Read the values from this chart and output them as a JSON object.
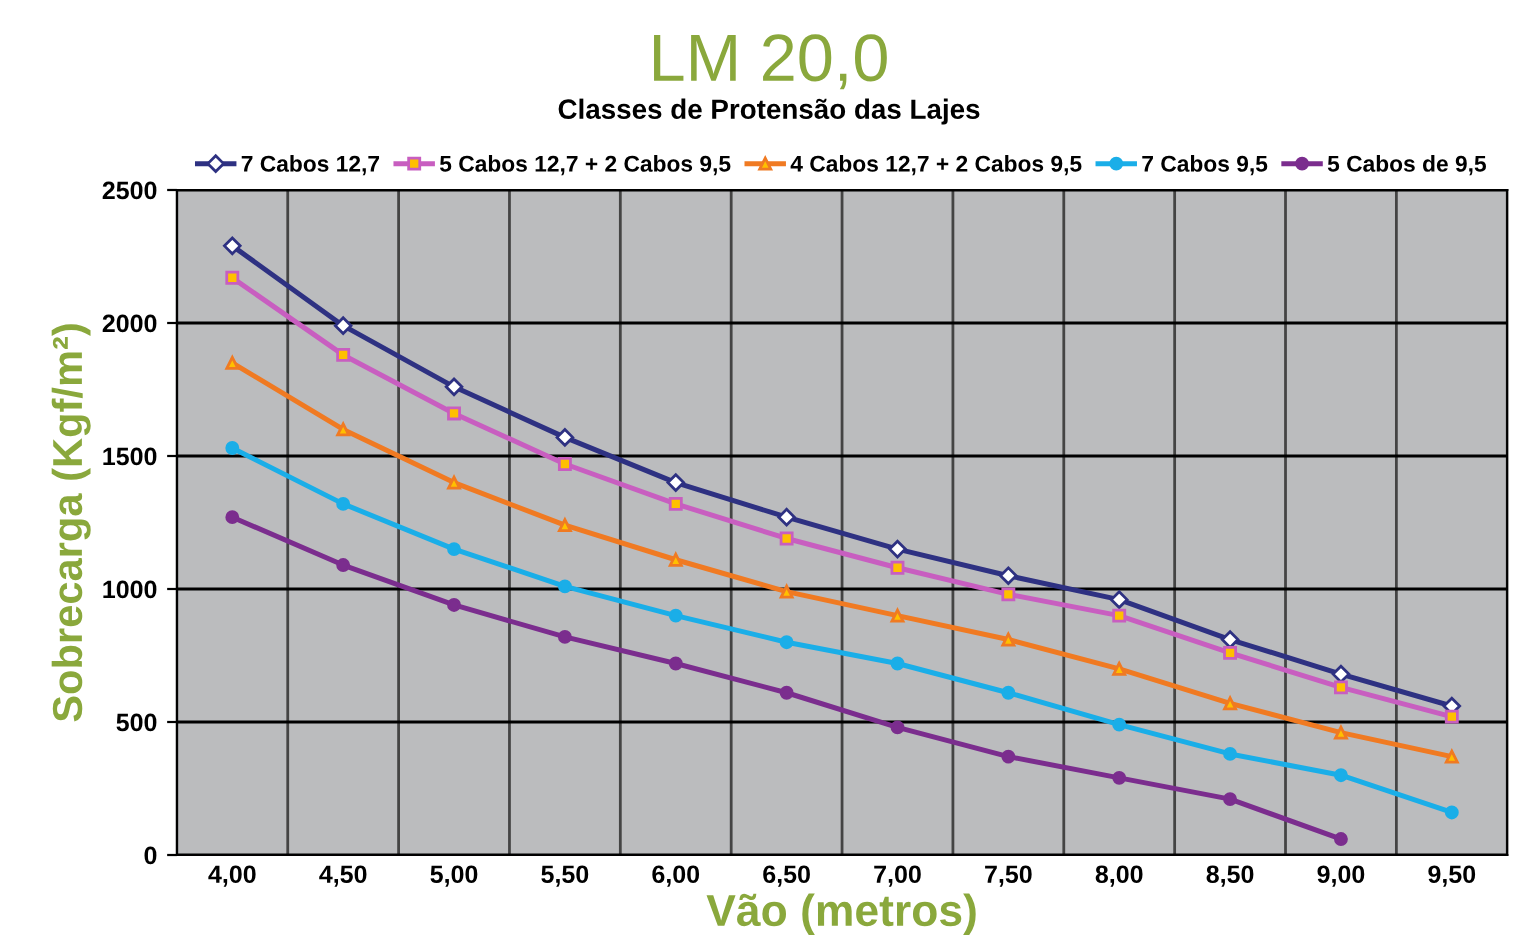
{
  "chart_data": {
    "type": "line",
    "title": "LM 20,0",
    "subtitle": "Classes de Protensão das Lajes",
    "xlabel": "Vão (metros)",
    "ylabel": "Sobrecarga (Kgf/m²)",
    "categories": [
      "4,00",
      "4,50",
      "5,00",
      "5,50",
      "6,00",
      "6,50",
      "7,00",
      "7,50",
      "8,00",
      "8,50",
      "9,00",
      "9,50"
    ],
    "series": [
      {
        "name": "7 Cabos 12,7",
        "color": "#2e3182",
        "marker": "diamond",
        "values": [
          2290,
          1990,
          1760,
          1570,
          1400,
          1270,
          1150,
          1050,
          960,
          810,
          680,
          560
        ]
      },
      {
        "name": "5 Cabos 12,7 + 2 Cabos 9,5",
        "color": "#c85ec0",
        "marker": "square",
        "values": [
          2170,
          1880,
          1660,
          1470,
          1320,
          1190,
          1080,
          980,
          900,
          760,
          630,
          520
        ]
      },
      {
        "name": "4 Cabos 12,7 + 2 Cabos 9,5",
        "color": "#f07a22",
        "marker": "triangle",
        "values": [
          1850,
          1600,
          1400,
          1240,
          1110,
          990,
          900,
          810,
          700,
          570,
          460,
          370
        ]
      },
      {
        "name": "7 Cabos 9,5",
        "color": "#1aaee8",
        "marker": "circle",
        "values": [
          1530,
          1320,
          1150,
          1010,
          900,
          800,
          720,
          610,
          490,
          380,
          300,
          160
        ]
      },
      {
        "name": "5 Cabos de 9,5",
        "color": "#7b2d8e",
        "marker": "circle",
        "values": [
          1270,
          1090,
          940,
          820,
          720,
          610,
          480,
          370,
          290,
          210,
          60,
          null
        ]
      }
    ],
    "ylim": [
      0,
      2500
    ],
    "yticks": [
      0,
      500,
      1000,
      1500,
      2000,
      2500
    ],
    "grid": true,
    "legend": "top"
  }
}
